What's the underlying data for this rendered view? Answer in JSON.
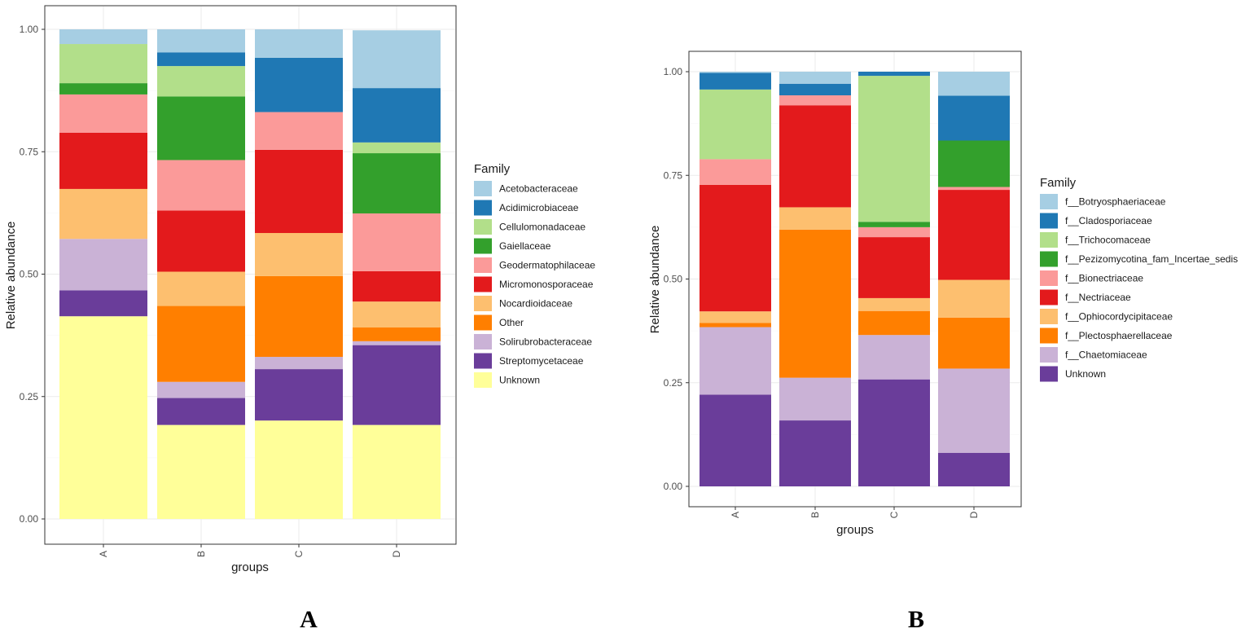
{
  "chart_data": [
    {
      "type": "bar",
      "stacked": true,
      "panel_label": "A",
      "xlabel": "groups",
      "ylabel": "Relative abundance",
      "ylim": [
        0,
        1
      ],
      "yticks": [
        "0.00",
        "0.25",
        "0.50",
        "0.75",
        "1.00"
      ],
      "categories": [
        "A",
        "B",
        "C",
        "D"
      ],
      "legend_title": "Family",
      "legend_position": "right",
      "series": [
        {
          "name": "Acetobacteraceae",
          "color": "#A6CEE3",
          "values": [
            0.03,
            0.047,
            0.058,
            0.118
          ]
        },
        {
          "name": "Acidimicrobiaceae",
          "color": "#1F78B4",
          "values": [
            0.0,
            0.028,
            0.111,
            0.111
          ]
        },
        {
          "name": "Cellulomonadaceae",
          "color": "#B2DF8A",
          "values": [
            0.08,
            0.062,
            0.0,
            0.022
          ]
        },
        {
          "name": "Gaiellaceae",
          "color": "#33A02C",
          "values": [
            0.023,
            0.13,
            0.0,
            0.123
          ]
        },
        {
          "name": "Geodermatophilaceae",
          "color": "#FB9A99",
          "values": [
            0.078,
            0.103,
            0.077,
            0.118
          ]
        },
        {
          "name": "Micromonosporaceae",
          "color": "#E31A1C",
          "values": [
            0.115,
            0.125,
            0.17,
            0.062
          ]
        },
        {
          "name": "Nocardioidaceae",
          "color": "#FDBF6F",
          "values": [
            0.102,
            0.07,
            0.088,
            0.053
          ]
        },
        {
          "name": "Other",
          "color": "#FF7F00",
          "values": [
            0.0,
            0.155,
            0.165,
            0.028
          ]
        },
        {
          "name": "Solirubrobacteraceae",
          "color": "#CAB2D6",
          "values": [
            0.105,
            0.033,
            0.025,
            0.008
          ]
        },
        {
          "name": "Streptomycetaceae",
          "color": "#6A3D9A",
          "values": [
            0.053,
            0.055,
            0.105,
            0.163
          ]
        },
        {
          "name": "Unknown",
          "color": "#FFFF99",
          "values": [
            0.414,
            0.192,
            0.201,
            0.192
          ]
        }
      ]
    },
    {
      "type": "bar",
      "stacked": true,
      "panel_label": "B",
      "xlabel": "groups",
      "ylabel": "Relative abundance",
      "ylim": [
        0,
        1
      ],
      "yticks": [
        "0.00",
        "0.25",
        "0.50",
        "0.75",
        "1.00"
      ],
      "categories": [
        "A",
        "B",
        "C",
        "D"
      ],
      "legend_title": "Family",
      "legend_position": "right",
      "series": [
        {
          "name": "f__Botryosphaeriaceae",
          "color": "#A6CEE3",
          "values": [
            0.003,
            0.029,
            0.0,
            0.058
          ]
        },
        {
          "name": "f__Cladosporiaceae",
          "color": "#1F78B4",
          "values": [
            0.04,
            0.028,
            0.01,
            0.108
          ]
        },
        {
          "name": "f__Trichocomaceae",
          "color": "#B2DF8A",
          "values": [
            0.168,
            0.0,
            0.352,
            0.0
          ]
        },
        {
          "name": "f__Pezizomycotina_fam_Incertae_sedis",
          "color": "#33A02C",
          "values": [
            0.0,
            0.0,
            0.013,
            0.112
          ]
        },
        {
          "name": "f__Bionectriaceae",
          "color": "#FB9A99",
          "values": [
            0.062,
            0.024,
            0.024,
            0.007
          ]
        },
        {
          "name": "f__Nectriaceae",
          "color": "#E31A1C",
          "values": [
            0.305,
            0.246,
            0.147,
            0.217
          ]
        },
        {
          "name": "f__Ophiocordycipitaceae",
          "color": "#FDBF6F",
          "values": [
            0.028,
            0.054,
            0.031,
            0.091
          ]
        },
        {
          "name": "f__Plectosphaerellaceae",
          "color": "#FF7F00",
          "values": [
            0.01,
            0.357,
            0.058,
            0.123
          ]
        },
        {
          "name": "f__Chaetomiaceae",
          "color": "#CAB2D6",
          "values": [
            0.163,
            0.103,
            0.107,
            0.203
          ]
        },
        {
          "name": "Unknown",
          "color": "#6A3D9A",
          "values": [
            0.221,
            0.159,
            0.258,
            0.081
          ]
        }
      ]
    }
  ]
}
